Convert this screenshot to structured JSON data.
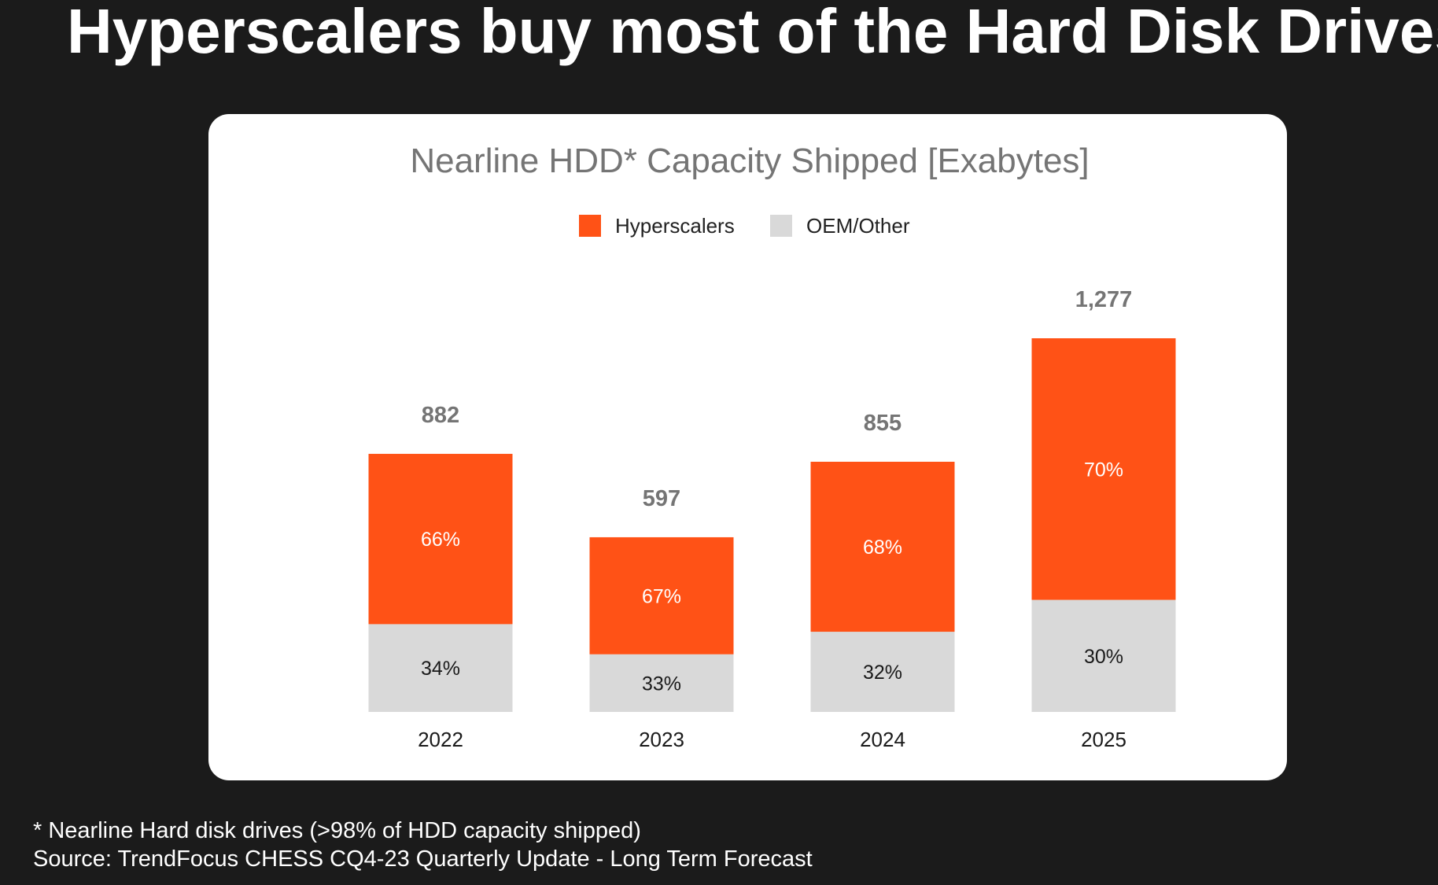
{
  "slide": {
    "title": "Hyperscalers buy most of the Hard Disk Drives"
  },
  "footnotes": {
    "line1": "* Nearline Hard disk drives (>98% of HDD capacity shipped)",
    "line2": "Source: TrendFocus CHESS CQ4-23 Quarterly Update - Long Term Forecast"
  },
  "colors": {
    "hyperscalers": "#ff5216",
    "oem_other": "#d9d9d9",
    "background": "#1b1b1b",
    "card": "#ffffff"
  },
  "chart_data": {
    "type": "bar",
    "stacked": true,
    "title": "Nearline HDD* Capacity Shipped [Exabytes]",
    "xlabel": "",
    "ylabel": "",
    "legend_position": "top-center",
    "grid": false,
    "categories": [
      "2022",
      "2023",
      "2024",
      "2025"
    ],
    "totals": [
      882,
      597,
      855,
      1277
    ],
    "total_labels": [
      "882",
      "597",
      "855",
      "1,277"
    ],
    "ylim": [
      0,
      1400
    ],
    "series": [
      {
        "name": "Hyperscalers",
        "color": "#ff5216",
        "values": [
          582,
          400,
          581,
          894
        ],
        "share_labels": [
          "66%",
          "67%",
          "68%",
          "70%"
        ]
      },
      {
        "name": "OEM/Other",
        "color": "#d9d9d9",
        "values": [
          300,
          197,
          274,
          383
        ],
        "share_labels": [
          "34%",
          "33%",
          "32%",
          "30%"
        ]
      }
    ]
  }
}
